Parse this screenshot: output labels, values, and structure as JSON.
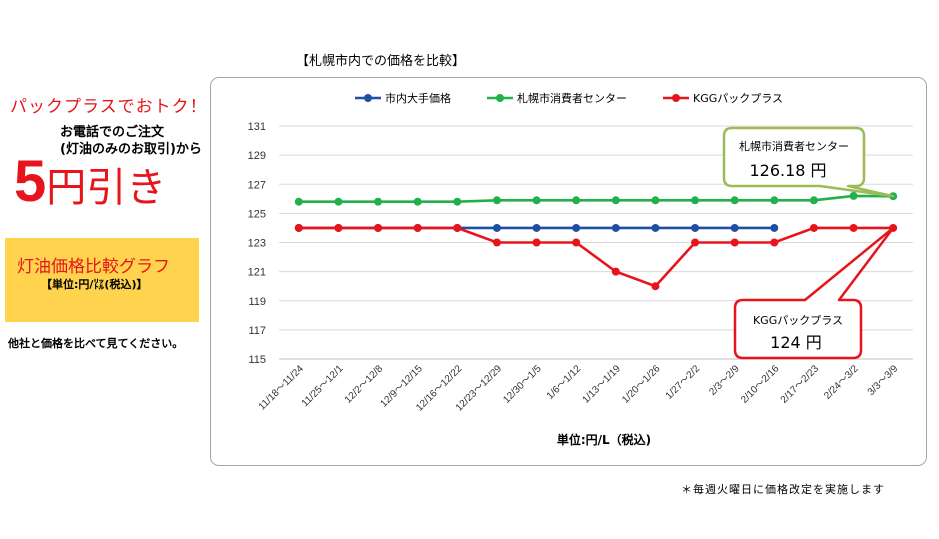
{
  "promo": {
    "headline": "パックプラスでおトク！",
    "order_line1": "お電話でのご注文",
    "order_line2": "(灯油のみのお取引)から",
    "discount_number": "5",
    "discount_unit": "円引き"
  },
  "graph_box": {
    "title": "灯油価格比較グラフ",
    "unit": "【単位:円/㍑(税込)】"
  },
  "compare_text": "他社と価格を比べて見てください。",
  "footnote": "＊毎週火曜日に価格改定を実施します",
  "colors": {
    "red": "#e8141b",
    "green": "#22b04b",
    "blue": "#1f4fa3",
    "callout_green": "#9bbb59",
    "callout_red": "#e8141b",
    "promo_box": "#ffd34e"
  },
  "chart_data": {
    "type": "line",
    "title": "【札幌市内での価格を比較】",
    "xlabel": "単位:円/L（税込)",
    "ylabel": "",
    "ylim": [
      115,
      131
    ],
    "yticks": [
      115,
      117,
      119,
      121,
      123,
      125,
      127,
      129,
      131
    ],
    "grid": true,
    "legend_position": "top",
    "categories": [
      "11/18～11/24",
      "11/25～12/1",
      "12/2～12/8",
      "12/9～12/15",
      "12/16～12/22",
      "12/23～12/29",
      "12/30～1/5",
      "1/6～1/12",
      "1/13～1/19",
      "1/20～1/26",
      "1/27～2/2",
      "2/3～2/9",
      "2/10～2/16",
      "2/17～2/23",
      "2/24～3/2",
      "3/3～3/9"
    ],
    "series": [
      {
        "name": "市内大手価格",
        "color": "#1f4fa3",
        "values": [
          124,
          124,
          124,
          124,
          124,
          124,
          124,
          124,
          124,
          124,
          124,
          124,
          124,
          null,
          null,
          null
        ]
      },
      {
        "name": "札幌市消費者センター",
        "color": "#22b04b",
        "values": [
          125.8,
          125.8,
          125.8,
          125.8,
          125.8,
          125.9,
          125.9,
          125.9,
          125.9,
          125.9,
          125.9,
          125.9,
          125.9,
          125.9,
          126.2,
          126.18
        ]
      },
      {
        "name": "KGGパックプラス",
        "color": "#e8141b",
        "values": [
          124,
          124,
          124,
          124,
          124,
          123,
          123,
          123,
          121,
          120,
          123,
          123,
          123,
          124,
          124,
          124
        ]
      }
    ],
    "annotations": [
      {
        "series": "札幌市消費者センター",
        "label": "札幌市消費者センター",
        "value_text": "126.18 円"
      },
      {
        "series": "KGGパックプラス",
        "label": "KGGパックプラス",
        "value_text": "124 円"
      }
    ]
  }
}
